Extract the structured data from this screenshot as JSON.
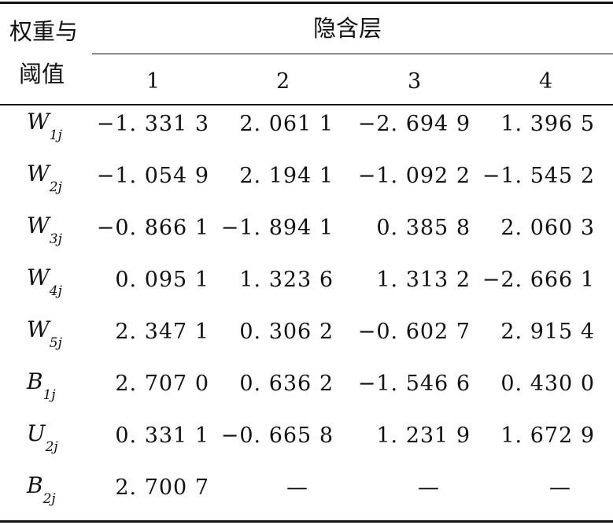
{
  "header": {
    "row_label_line1": "权重与",
    "row_label_line2": "阈值",
    "span_title": "隐含层",
    "columns": [
      "1",
      "2",
      "3",
      "4"
    ]
  },
  "rows": [
    {
      "label": "W",
      "sub": "1j",
      "values": [
        "−1. 331 3",
        "2. 061 1",
        "−2. 694 9",
        "1. 396 5"
      ]
    },
    {
      "label": "W",
      "sub": "2j",
      "values": [
        "−1. 054 9",
        "2. 194 1",
        "−1. 092 2",
        "−1. 545 2"
      ]
    },
    {
      "label": "W",
      "sub": "3j",
      "values": [
        "−0. 866 1",
        "−1. 894 1",
        "0. 385 8",
        "2. 060 3"
      ]
    },
    {
      "label": "W",
      "sub": "4j",
      "values": [
        "0. 095 1",
        "1. 323 6",
        "1. 313 2",
        "−2. 666 1"
      ]
    },
    {
      "label": "W",
      "sub": "5j",
      "values": [
        "2. 347 1",
        "0. 306 2",
        "−0. 602 7",
        "2. 915 4"
      ]
    },
    {
      "label": "B",
      "sub": "1j",
      "values": [
        "2. 707 0",
        "0. 636 2",
        "−1. 546 6",
        "0. 430 0"
      ]
    },
    {
      "label": "U",
      "sub": "2j",
      "values": [
        "0. 331 1",
        "−0. 665 8",
        "1. 231 9",
        "1. 672 9"
      ]
    },
    {
      "label": "B",
      "sub": "2j",
      "values": [
        "2. 700 7",
        "—",
        "—",
        "—"
      ]
    }
  ]
}
